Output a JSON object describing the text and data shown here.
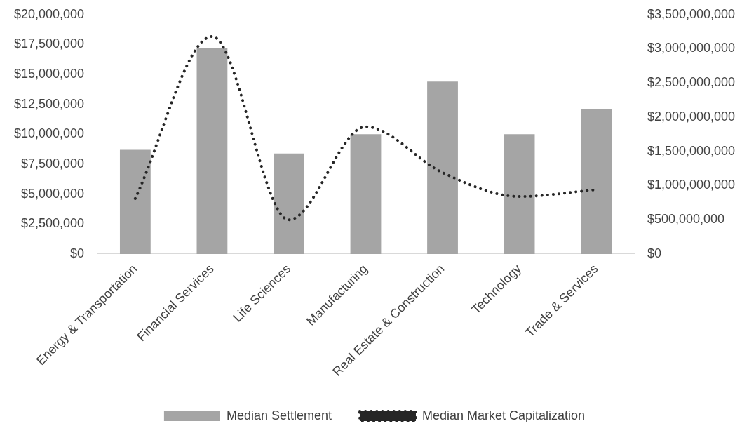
{
  "chart_data": {
    "type": "bar",
    "categories": [
      "Energy & Transportation",
      "Financial Services",
      "Life Sciences",
      "Manufacturing",
      "Real Estate & Construction",
      "Technology",
      "Trade & Services"
    ],
    "series": [
      {
        "name": "Median Settlement",
        "color": "#a5a5a5",
        "values": [
          8700000,
          17200000,
          8400000,
          10000000,
          14400000,
          10000000,
          12100000
        ]
      },
      {
        "name": "Median Market Capitalization",
        "type": "line",
        "axis": "y2",
        "color": "#262626",
        "line_style": "dotted",
        "marker": "none",
        "values": [
          810000000,
          3180000000,
          500000000,
          1860000000,
          1190000000,
          840000000,
          940000000
        ]
      }
    ],
    "ylim": [
      0,
      20000000
    ],
    "yticks": [
      {
        "value": 0,
        "label": "$0"
      },
      {
        "value": 2500000,
        "label": "$2,500,000"
      },
      {
        "value": 5000000,
        "label": "$5,000,000"
      },
      {
        "value": 7500000,
        "label": "$7,500,000"
      },
      {
        "value": 10000000,
        "label": "$10,000,000"
      },
      {
        "value": 12500000,
        "label": "$12,500,000"
      },
      {
        "value": 15000000,
        "label": "$15,000,000"
      },
      {
        "value": 17500000,
        "label": "$17,500,000"
      },
      {
        "value": 20000000,
        "label": "$20,000,000"
      }
    ],
    "y2lim": [
      0,
      3500000000
    ],
    "y2ticks": [
      {
        "value": 0,
        "label": "$0"
      },
      {
        "value": 500000000,
        "label": "$500,000,000"
      },
      {
        "value": 1000000000,
        "label": "$1,000,000,000"
      },
      {
        "value": 1500000000,
        "label": "$1,500,000,000"
      },
      {
        "value": 2000000000,
        "label": "$2,000,000,000"
      },
      {
        "value": 2500000000,
        "label": "$2,500,000,000"
      },
      {
        "value": 3000000000,
        "label": "$3,000,000,000"
      },
      {
        "value": 3500000000,
        "label": "$3,500,000,000"
      }
    ],
    "grid": false,
    "legend": "bottom"
  }
}
